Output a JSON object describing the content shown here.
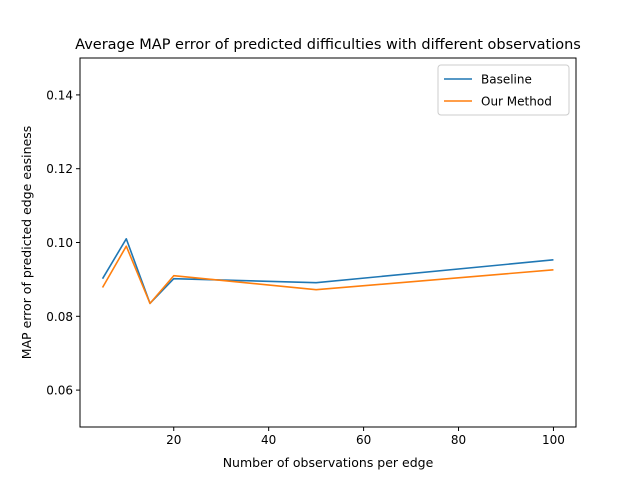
{
  "chart_data": {
    "type": "line",
    "title": "Average MAP error of predicted difficulties with different observations",
    "xlabel": "Number of observations per edge",
    "ylabel": "MAP error of predicted edge easiness",
    "xlim": [
      0.25,
      104.75
    ],
    "ylim": [
      0.05,
      0.15
    ],
    "x_ticks": [
      20,
      40,
      60,
      80,
      100
    ],
    "x_tick_labels": [
      "20",
      "40",
      "60",
      "80",
      "100"
    ],
    "y_ticks": [
      0.06,
      0.08,
      0.1,
      0.12,
      0.14
    ],
    "y_tick_labels": [
      "0.06",
      "0.08",
      "0.10",
      "0.12",
      "0.14"
    ],
    "grid": false,
    "legend_position": "top-right",
    "x": [
      5,
      10,
      15,
      20,
      50,
      100
    ],
    "series": [
      {
        "name": "Baseline",
        "color": "#1f77b4",
        "values": [
          0.0902,
          0.101,
          0.0835,
          0.0902,
          0.0891,
          0.0953
        ]
      },
      {
        "name": "Our Method",
        "color": "#ff7f0e",
        "values": [
          0.0878,
          0.099,
          0.0835,
          0.091,
          0.0872,
          0.0926
        ]
      }
    ]
  }
}
